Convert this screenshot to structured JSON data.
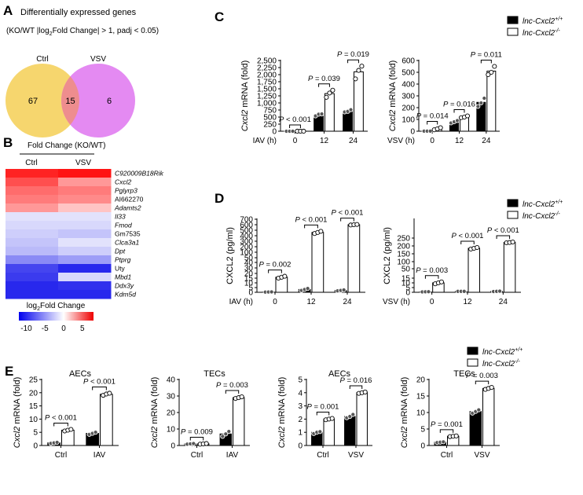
{
  "colors": {
    "ctrl_circle": "#f6d66e",
    "vsv_circle": "#e48af2",
    "overlap": "#ee8d8e",
    "heat_high": "#ee1111",
    "heat_low": "#1010ee",
    "bar_wt": "#000000",
    "bar_ko": "#ffffff"
  },
  "legend": {
    "wt": "lnc-Cxcl2",
    "wt_sup": "+/+",
    "ko": "lnc-Cxcl2",
    "ko_sup": "-/-"
  },
  "panelA": {
    "label": "A",
    "title": "Differentially expressed genes",
    "subtitle_pre": "(KO/WT |log",
    "subtitle_sub": "2",
    "subtitle_post": "Fold Change| > 1, padj < 0.05)",
    "set1": "Ctrl",
    "set2": "VSV",
    "only1": "67",
    "both": "15",
    "only2": "6"
  },
  "panelB": {
    "label": "B",
    "title": "Fold Change (KO/WT)",
    "columns": [
      "Ctrl",
      "VSV"
    ],
    "genes": [
      "C920009B18Rik",
      "Cxcl2",
      "Pglyrp3",
      "AI662270",
      "Adamts2",
      "Il33",
      "Fmod",
      "Gm7535",
      "Clca3a1",
      "Dpt",
      "Ptprg",
      "Uty",
      "Mbd1",
      "Ddx3y",
      "Kdm5d"
    ],
    "italic": [
      true,
      true,
      true,
      false,
      true,
      true,
      true,
      false,
      true,
      true,
      true,
      false,
      true,
      true,
      true
    ],
    "values": [
      [
        7.5,
        8.5
      ],
      [
        6,
        3.5
      ],
      [
        5,
        4.5
      ],
      [
        4.5,
        4
      ],
      [
        3.5,
        2
      ],
      [
        -1.5,
        -1.5
      ],
      [
        -2,
        -2
      ],
      [
        -2.5,
        -3
      ],
      [
        -3,
        -1.5
      ],
      [
        -3.5,
        -2.5
      ],
      [
        -6,
        -5
      ],
      [
        -9.5,
        -11
      ],
      [
        -10,
        -2
      ],
      [
        -11,
        -10.5
      ],
      [
        -11,
        -11
      ]
    ],
    "colorbar_title_pre": "log",
    "colorbar_title_sub": "2",
    "colorbar_title_post": "Fold Change",
    "colorbar_ticks": [
      "-10",
      "-5",
      "0",
      "5"
    ],
    "colorbar_range": [
      -12,
      8
    ]
  },
  "panelC": {
    "label": "C"
  },
  "panelD": {
    "label": "D"
  },
  "panelE": {
    "label": "E"
  },
  "chart_data": [
    {
      "id": "C1",
      "type": "bar",
      "ylabel_pre": "Cxcl2",
      "ylabel_post": " mRNA (fold)",
      "xlabel": "IAV (h)",
      "categories": [
        "0",
        "12",
        "24"
      ],
      "ylim": [
        0,
        2500
      ],
      "yticks": [
        0,
        250,
        500,
        750,
        1000,
        1250,
        1500,
        1750,
        2000,
        2250,
        2500
      ],
      "yticklabels": [
        "0",
        "250",
        "500",
        "750",
        "1,000",
        "1,250",
        "1,500",
        "1,750",
        "2,000",
        "2,250",
        "2,500"
      ],
      "series": [
        {
          "name": "lnc-Cxcl2+/+",
          "values": [
            1,
            580,
            710
          ],
          "points": [
            [
              1,
              1,
              1
            ],
            [
              540,
              600,
              610
            ],
            [
              680,
              700,
              760
            ]
          ]
        },
        {
          "name": "lnc-Cxcl2-/-",
          "values": [
            1,
            1330,
            2100
          ],
          "points": [
            [
              1,
              1,
              1
            ],
            [
              1200,
              1350,
              1450
            ],
            [
              1850,
              2150,
              2300
            ]
          ]
        }
      ],
      "pvalues": [
        "P < 0.001",
        "P = 0.039",
        "P = 0.019"
      ]
    },
    {
      "id": "C2",
      "type": "bar",
      "ylabel_pre": "Cxcl2",
      "ylabel_post": " mRNA (fold)",
      "xlabel": "VSV (h)",
      "categories": [
        "0",
        "12",
        "24"
      ],
      "ylim": [
        0,
        600
      ],
      "yticks": [
        0,
        100,
        200,
        300,
        400,
        500,
        600
      ],
      "yticklabels": [
        "0",
        "100",
        "200",
        "300",
        "400",
        "500",
        "600"
      ],
      "series": [
        {
          "name": "lnc-Cxcl2+/+",
          "values": [
            1,
            80,
            245
          ],
          "points": [
            [
              1,
              1,
              1
            ],
            [
              70,
              80,
              90
            ],
            [
              210,
              240,
              280
            ]
          ]
        },
        {
          "name": "lnc-Cxcl2-/-",
          "values": [
            22,
            120,
            510
          ],
          "points": [
            [
              12,
              20,
              30
            ],
            [
              115,
              120,
              130
            ],
            [
              480,
              500,
              550
            ]
          ]
        }
      ],
      "pvalues": [
        "P = 0.014",
        "P = 0.016",
        "P = 0.011"
      ]
    },
    {
      "id": "D1",
      "type": "bar",
      "ylabel": "CXCL2 (pg/ml)",
      "xlabel": "IAV (h)",
      "categories": [
        "0",
        "12",
        "24"
      ],
      "broken_axis": true,
      "yticklabels": [
        "0",
        "5",
        "10",
        "15",
        "20",
        "30",
        "40",
        "50",
        "100",
        "200",
        "300",
        "400",
        "500",
        "600",
        "700"
      ],
      "series": [
        {
          "name": "lnc-Cxcl2+/+",
          "values": [
            0.3,
            3,
            2
          ],
          "points": [
            [
              0.2,
              0.3,
              0.4
            ],
            [
              2,
              3,
              4
            ],
            [
              1.5,
              2,
              2.5
            ]
          ]
        },
        {
          "name": "lnc-Cxcl2-/-",
          "values": [
            16,
            460,
            600
          ],
          "points": [
            [
              15,
              16,
              17
            ],
            [
              440,
              460,
              480
            ],
            [
              595,
              600,
              605
            ]
          ]
        }
      ],
      "pvalues": [
        "P = 0.002",
        "P < 0.001",
        "P < 0.001"
      ]
    },
    {
      "id": "D2",
      "type": "bar",
      "ylabel": "CXCL2 (pg/ml)",
      "xlabel": "VSV (h)",
      "categories": [
        "0",
        "12",
        "24"
      ],
      "broken_axis": true,
      "yticklabels": [
        "0",
        "5",
        "10",
        "15",
        "50",
        "100",
        "150",
        "200",
        "250"
      ],
      "series": [
        {
          "name": "lnc-Cxcl2+/+",
          "values": [
            0.5,
            1,
            1
          ],
          "points": [
            [
              0.4,
              0.5,
              0.6
            ],
            [
              1,
              1,
              1
            ],
            [
              0.8,
              1,
              1.2
            ]
          ]
        },
        {
          "name": "lnc-Cxcl2-/-",
          "values": [
            10,
            185,
            222
          ],
          "points": [
            [
              9,
              10,
              11
            ],
            [
              180,
              185,
              190
            ],
            [
              220,
              222,
              225
            ]
          ]
        }
      ],
      "pvalues": [
        "P = 0.003",
        "P < 0.001",
        "P < 0.001"
      ]
    },
    {
      "id": "E1",
      "type": "bar",
      "title": "AECs",
      "ylabel_pre": "Cxcl2",
      "ylabel_post": " mRNA (fold)",
      "categories": [
        "Ctrl",
        "IAV"
      ],
      "ylim": [
        0,
        25
      ],
      "yticks": [
        0,
        5,
        10,
        15,
        20,
        25
      ],
      "yticklabels": [
        "0",
        "5",
        "10",
        "15",
        "20",
        "25"
      ],
      "series": [
        {
          "name": "lnc-Cxcl2+/+",
          "values": [
            1,
            4.6
          ],
          "points": [
            [
              0.8,
              1,
              1.2
            ],
            [
              4.2,
              4.6,
              5
            ]
          ]
        },
        {
          "name": "lnc-Cxcl2-/-",
          "values": [
            5.8,
            19.4
          ],
          "points": [
            [
              5.5,
              5.8,
              6.1
            ],
            [
              19,
              19.5,
              19.8
            ]
          ]
        }
      ],
      "pvalues": [
        "P < 0.001",
        "P < 0.001"
      ]
    },
    {
      "id": "E2",
      "type": "bar",
      "title": "TECs",
      "ylabel_pre": "Cxcl2",
      "ylabel_post": " mRNA (fold)",
      "categories": [
        "Ctrl",
        "IAV"
      ],
      "ylim": [
        0,
        40
      ],
      "yticks": [
        0,
        10,
        20,
        30,
        40
      ],
      "yticklabels": [
        "0",
        "10",
        "20",
        "30",
        "40"
      ],
      "series": [
        {
          "name": "lnc-Cxcl2+/+",
          "values": [
            1,
            7
          ],
          "points": [
            [
              0.8,
              1,
              1.2
            ],
            [
              5.5,
              7,
              8.5
            ]
          ]
        },
        {
          "name": "lnc-Cxcl2-/-",
          "values": [
            1,
            29
          ],
          "points": [
            [
              0.8,
              1,
              1.2
            ],
            [
              28.5,
              29,
              29.5
            ]
          ]
        }
      ],
      "pvalues": [
        "P = 0.009",
        "P = 0.003"
      ]
    },
    {
      "id": "E3",
      "type": "bar",
      "title": "AECs",
      "ylabel_pre": "Cxcl2",
      "ylabel_post": " mRNA (fold)",
      "categories": [
        "Ctrl",
        "VSV"
      ],
      "ylim": [
        0,
        5
      ],
      "yticks": [
        0,
        1,
        2,
        3,
        4,
        5
      ],
      "yticklabels": [
        "0",
        "1",
        "2",
        "3",
        "4",
        "5"
      ],
      "series": [
        {
          "name": "lnc-Cxcl2+/+",
          "values": [
            1,
            2.2
          ],
          "points": [
            [
              0.9,
              1,
              1.05
            ],
            [
              2.1,
              2.2,
              2.35
            ]
          ]
        },
        {
          "name": "lnc-Cxcl2-/-",
          "values": [
            2,
            4
          ],
          "points": [
            [
              1.95,
              2,
              2.05
            ],
            [
              3.95,
              4,
              4.05
            ]
          ]
        }
      ],
      "pvalues": [
        "P = 0.001",
        "P = 0.016"
      ]
    },
    {
      "id": "E4",
      "type": "bar",
      "title": "TECs",
      "ylabel_pre": "Cxcl2",
      "ylabel_post": " mRNA (fold)",
      "categories": [
        "Ctrl",
        "VSV"
      ],
      "ylim": [
        0,
        20
      ],
      "yticks": [
        0,
        5,
        10,
        15,
        20
      ],
      "yticklabels": [
        "0",
        "5",
        "10",
        "15",
        "20"
      ],
      "series": [
        {
          "name": "lnc-Cxcl2+/+",
          "values": [
            1,
            10.3
          ],
          "points": [
            [
              0.9,
              1,
              1.1
            ],
            [
              9.8,
              10.3,
              10.8
            ]
          ]
        },
        {
          "name": "lnc-Cxcl2-/-",
          "values": [
            2.8,
            17.3
          ],
          "points": [
            [
              2.7,
              2.8,
              2.9
            ],
            [
              17,
              17.3,
              17.6
            ]
          ]
        }
      ],
      "pvalues": [
        "P = 0.001",
        "P = 0.003"
      ]
    }
  ]
}
